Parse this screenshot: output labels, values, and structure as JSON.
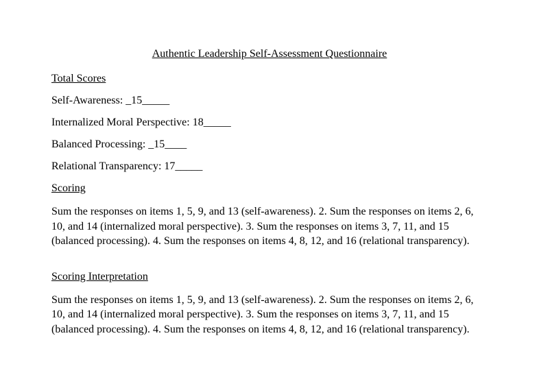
{
  "title": "Authentic Leadership Self-Assessment Questionnaire",
  "total_scores_heading": "Total Scores",
  "scores": {
    "self_awareness": "Self-Awareness: _15_____",
    "internalized_moral": "Internalized Moral Perspective: 18_____",
    "balanced_processing": "Balanced Processing: _15____",
    "relational_transparency": "Relational Transparency: 17_____"
  },
  "scoring_heading": "Scoring",
  "scoring_paragraph": "Sum the responses on items 1, 5, 9, and 13 (self-awareness). 2. Sum the responses on items 2, 6, 10, and 14 (internalized moral perspective). 3. Sum the responses on items 3, 7, 11, and 15 (balanced processing). 4. Sum the responses on items 4, 8, 12, and 16 (relational transparency).",
  "interpretation_heading": "Scoring Interpretation",
  "interpretation_paragraph": "Sum the responses on items 1, 5, 9, and 13 (self-awareness). 2. Sum the responses on items 2, 6, 10, and 14 (internalized moral perspective). 3. Sum the responses on items 3, 7, 11, and 15 (balanced processing). 4. Sum the responses on items 4, 8, 12, and 16 (relational transparency)."
}
